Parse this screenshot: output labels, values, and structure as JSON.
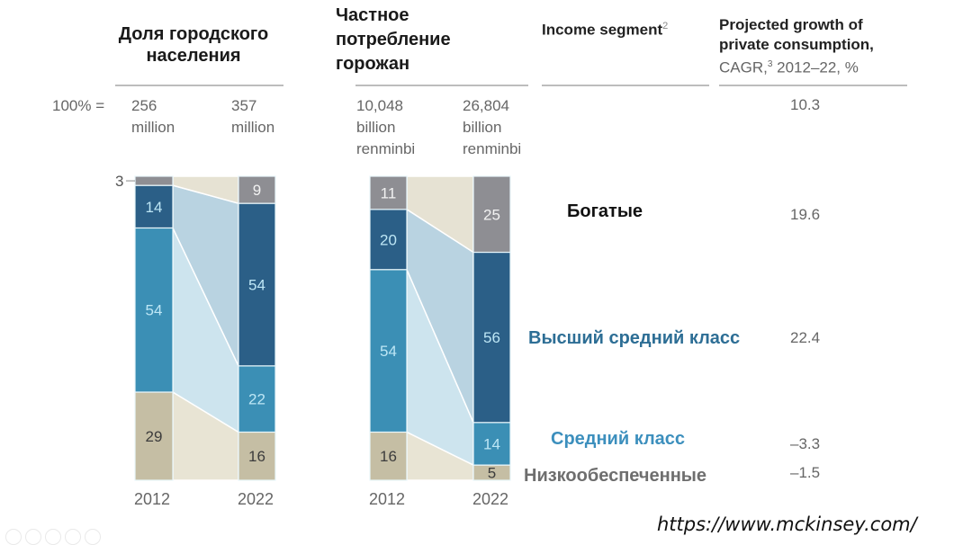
{
  "headers": {
    "urban_population": "Доля городского населения",
    "urban_consumption": "Частное потребление горожан",
    "income_segment": "Income segment",
    "income_segment_sup": "2",
    "projected_growth_line1": "Projected growth of",
    "projected_growth_line2": "private consumption,",
    "cagr_label": "CAGR,",
    "cagr_sup": "3",
    "cagr_period": " 2012–22, %"
  },
  "totals_label": "100% =",
  "source_url": "https://www.mckinsey.com/",
  "chart_data": [
    {
      "type": "bar",
      "stacked": true,
      "title": "Доля городского населения",
      "categories": [
        "2012",
        "2022"
      ],
      "totals": [
        {
          "value": "256",
          "unit": "million"
        },
        {
          "value": "357",
          "unit": "million"
        }
      ],
      "series": [
        {
          "name": "Низкообеспеченные",
          "values": [
            29,
            16
          ],
          "color": "#c5bea4",
          "label_color": "#3c3c3c"
        },
        {
          "name": "Средний класс",
          "values": [
            54,
            22
          ],
          "color": "#3b8fb5",
          "label_color": "#bde6f5"
        },
        {
          "name": "Высший средний класс",
          "values": [
            14,
            54
          ],
          "color": "#2b5f87",
          "label_color": "#bde6f5"
        },
        {
          "name": "Богатые",
          "values": [
            3,
            9
          ],
          "color": "#8e8e93",
          "label_color": "#f2f2f2"
        }
      ],
      "outside_labels": [
        {
          "category": "2012",
          "series": "Богатые",
          "text": "3"
        }
      ],
      "ylim": [
        0,
        100
      ]
    },
    {
      "type": "bar",
      "stacked": true,
      "title": "Частное потребление горожан",
      "categories": [
        "2012",
        "2022"
      ],
      "totals": [
        {
          "value": "10,048",
          "unit": "billion",
          "unit2": "renminbi"
        },
        {
          "value": "26,804",
          "unit": "billion",
          "unit2": "renminbi"
        }
      ],
      "series": [
        {
          "name": "Низкообеспеченные",
          "values": [
            16,
            5
          ],
          "color": "#c5bea4",
          "label_color": "#3c3c3c"
        },
        {
          "name": "Средний класс",
          "values": [
            54,
            14
          ],
          "color": "#3b8fb5",
          "label_color": "#bde6f5"
        },
        {
          "name": "Высший средний класс",
          "values": [
            20,
            56
          ],
          "color": "#2b5f87",
          "label_color": "#bde6f5"
        },
        {
          "name": "Богатые",
          "values": [
            11,
            25
          ],
          "color": "#8e8e93",
          "label_color": "#f2f2f2"
        }
      ],
      "ylim": [
        0,
        100
      ]
    }
  ],
  "segments": [
    {
      "name": "Богатые",
      "cagr": "19.6",
      "color": "#111111"
    },
    {
      "name": "Высший средний класс",
      "cagr": "22.4",
      "color": "#2d6e95"
    },
    {
      "name": "Средний класс",
      "cagr": "–3.3",
      "color": "#3c8fbd"
    },
    {
      "name": "Низкообеспеченные",
      "cagr": "–1.5",
      "color": "#6e6e6e"
    }
  ],
  "total_cagr": "10.3",
  "flow_colors": {
    "wealthy": "#e6e2d3",
    "upper": "#b9d3e1",
    "mass": "#cde4ee",
    "poor": "#e8e4d4"
  }
}
